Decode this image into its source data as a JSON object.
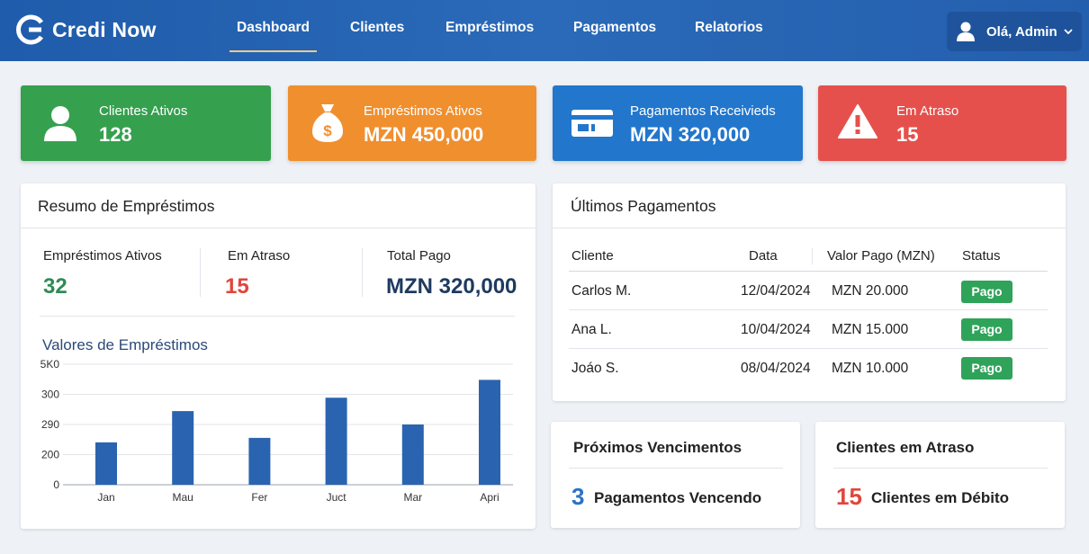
{
  "app": {
    "name": "Credi Now"
  },
  "nav": {
    "items": [
      {
        "label": "Dashboard",
        "active": true
      },
      {
        "label": "Clientes",
        "active": false
      },
      {
        "label": "Empréstimos",
        "active": false
      },
      {
        "label": "Pagamentos",
        "active": false
      },
      {
        "label": "Relatorios",
        "active": false
      }
    ],
    "user_label": "Olá, Admin"
  },
  "stats": [
    {
      "label": "Clientes Ativos",
      "value": "128",
      "icon": "user-icon",
      "color": "#35a04e"
    },
    {
      "label": "Empréstimos Ativos",
      "value": "MZN 450,000",
      "icon": "money-bag-icon",
      "color": "#f08f2e"
    },
    {
      "label": "Pagamentos Receivieds",
      "value": "MZN 320,000",
      "icon": "credit-card-icon",
      "color": "#2276cc"
    },
    {
      "label": "Em Atraso",
      "value": "15",
      "icon": "warning-icon",
      "color": "#e6504c"
    }
  ],
  "summary": {
    "title": "Resumo de Empréstimos",
    "metrics": [
      {
        "label": "Empréstimos Ativos",
        "value": "32",
        "color": "#2e8b57"
      },
      {
        "label": "Em Atraso",
        "value": "15",
        "color": "#e0463c"
      },
      {
        "label": "Total Pago",
        "value": "MZN 320,000",
        "color": "#1e3a5f"
      }
    ]
  },
  "chart_data": {
    "type": "bar",
    "title": "Valores de Empréstimos",
    "categories": [
      "Jan",
      "Mau",
      "Fer",
      "Juct",
      "Mar",
      "Apri"
    ],
    "values": [
      190,
      330,
      210,
      390,
      270,
      470
    ],
    "yticks": [
      "0",
      "200",
      "290",
      "300",
      "5K0"
    ],
    "ylim": [
      0,
      540
    ],
    "grid": true,
    "bar_color": "#2a64b0"
  },
  "payments": {
    "title": "Últimos Pagamentos",
    "columns": [
      "Cliente",
      "Data",
      "Valor Pago (MZN)",
      "Status"
    ],
    "rows": [
      {
        "cliente": "Carlos M.",
        "data": "12/04/2024",
        "valor": "MZN 20.000",
        "status": "Pago"
      },
      {
        "cliente": "Ana L.",
        "data": "10/04/2024",
        "valor": "MZN 15.000",
        "status": "Pago"
      },
      {
        "cliente": "Joáo S.",
        "data": "08/04/2024",
        "valor": "MZN 10.000",
        "status": "Pago"
      }
    ]
  },
  "upcoming": {
    "title": "Próximos Vencimentos",
    "count": "3",
    "text": "Pagamentos Vencendo",
    "color": "#2a72c8"
  },
  "overdue": {
    "title": "Clientes em Atraso",
    "count": "15",
    "text": "Clientes em Débito",
    "color": "#e0463c"
  }
}
